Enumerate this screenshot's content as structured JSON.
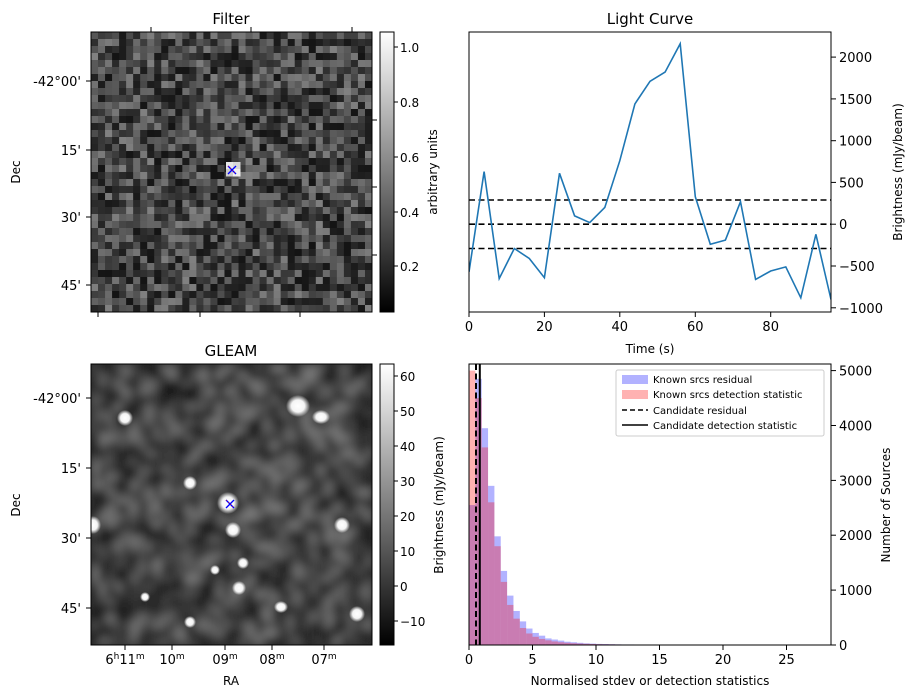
{
  "panels": {
    "filter": {
      "title": "Filter",
      "ylabel": "Dec",
      "yticks": [
        "-42°00'",
        "15'",
        "30'",
        "45'"
      ],
      "colorbar": {
        "label": "arbitrary units",
        "ticks": [
          "0.2",
          "0.4",
          "0.6",
          "0.8",
          "1.0"
        ]
      }
    },
    "gleam": {
      "title": "GLEAM",
      "ylabel": "Dec",
      "xlabel": "RA",
      "yticks": [
        "-42°00'",
        "15'",
        "30'",
        "45'"
      ],
      "xticks": [
        {
          "h": "6",
          "m": "11"
        },
        {
          "h": "",
          "m": "10"
        },
        {
          "h": "",
          "m": "09"
        },
        {
          "h": "",
          "m": "08"
        },
        {
          "h": "",
          "m": "07"
        }
      ],
      "colorbar": {
        "label": "Brightness (mJy/beam)",
        "ticks": [
          "−10",
          "0",
          "10",
          "20",
          "30",
          "40",
          "50",
          "60"
        ]
      }
    }
  },
  "chart_data": [
    {
      "type": "line",
      "title": "Light Curve",
      "xlabel": "Time (s)",
      "ylabel": "Brightness (mJy/beam)",
      "xlim": [
        0,
        96
      ],
      "ylim": [
        -1050,
        2300
      ],
      "xticks": [
        0,
        20,
        40,
        60,
        80
      ],
      "yticks": [
        -1000,
        -500,
        0,
        500,
        1000,
        1500,
        2000
      ],
      "color": "#1f77b4",
      "x": [
        0,
        4,
        8,
        12,
        16,
        20,
        24,
        28,
        32,
        36,
        40,
        44,
        48,
        52,
        56,
        60,
        64,
        68,
        72,
        76,
        80,
        84,
        88,
        92,
        96
      ],
      "y": [
        -570,
        630,
        -650,
        -290,
        -410,
        -640,
        610,
        100,
        20,
        200,
        760,
        1440,
        1710,
        1820,
        2160,
        330,
        -240,
        -190,
        270,
        -660,
        -560,
        -510,
        -880,
        -120,
        -900
      ],
      "hlines": [
        290,
        0,
        -290
      ]
    },
    {
      "type": "histogram",
      "xlabel": "Normalised stdev or detection statistics",
      "ylabel_left": "Brightness (mJy/beam)",
      "ylabel_right": "Number of Sources",
      "xlim": [
        0,
        28.5
      ],
      "ylim": [
        0,
        5120
      ],
      "xticks": [
        0,
        5,
        10,
        15,
        20,
        25
      ],
      "yticks": [
        0,
        1000,
        2000,
        3000,
        4000,
        5000
      ],
      "bin_width": 0.5,
      "series": [
        {
          "name": "Known srcs residual",
          "color": "#0000ff",
          "alpha": 0.3,
          "values": [
            2550,
            4850,
            3950,
            2900,
            1980,
            1350,
            900,
            620,
            430,
            300,
            220,
            170,
            120,
            100,
            80,
            60,
            50,
            40,
            30,
            25,
            20,
            18,
            15,
            12,
            10,
            10,
            8,
            8,
            6,
            6,
            5,
            5,
            4,
            4,
            3,
            3,
            3,
            2,
            2,
            2,
            2,
            2,
            1,
            1,
            1,
            1,
            1,
            1,
            1,
            1,
            1,
            1,
            1,
            1,
            1,
            1
          ]
        },
        {
          "name": "Known srcs detection statistic",
          "color": "#ff0000",
          "alpha": 0.3,
          "values": [
            5000,
            4500,
            3600,
            2600,
            1800,
            1150,
            730,
            480,
            310,
            210,
            150,
            110,
            85,
            65,
            50,
            40,
            32,
            26,
            22,
            18,
            15,
            13,
            12,
            10,
            9,
            8,
            8,
            7,
            6,
            6,
            6,
            5,
            5,
            5,
            4,
            4,
            4,
            3,
            3,
            3,
            3,
            3,
            2,
            2,
            2,
            2,
            2,
            2,
            2,
            2,
            2,
            2,
            2,
            2,
            2,
            2
          ]
        }
      ],
      "vlines": [
        {
          "name": "Candidate residual",
          "x": 0.55,
          "style": "dashed"
        },
        {
          "name": "Candidate detection statistic",
          "x": 0.85,
          "style": "solid"
        }
      ]
    }
  ]
}
